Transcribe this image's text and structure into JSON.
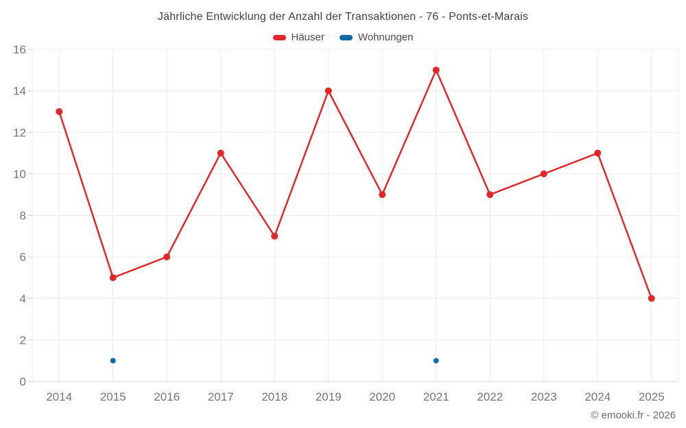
{
  "header": {
    "title": "Jährliche Entwicklung der Anzahl der Transaktionen - 76 - Ponts-et-Marais"
  },
  "footer": {
    "credit": "© emooki.fr - 2026"
  },
  "chart_data": {
    "type": "line",
    "title": "Jährliche Entwicklung der Anzahl der Transaktionen - 76 - Ponts-et-Marais",
    "categories": [
      "2014",
      "2015",
      "2016",
      "2017",
      "2018",
      "2019",
      "2020",
      "2021",
      "2022",
      "2023",
      "2024",
      "2025"
    ],
    "series": [
      {
        "name": "Häuser",
        "color": "#e0282b",
        "connect": true,
        "marker_radius": 5,
        "values": [
          13,
          5,
          6,
          11,
          7,
          14,
          9,
          15,
          9,
          10,
          11,
          4
        ]
      },
      {
        "name": "Wohnungen",
        "color": "#0e6ba8",
        "connect": false,
        "marker_radius": 4,
        "values": [
          null,
          1,
          null,
          null,
          null,
          null,
          null,
          1,
          null,
          null,
          null,
          null
        ]
      }
    ],
    "xlabel": "",
    "ylabel": "",
    "ylim": [
      0,
      16
    ],
    "ytick_step": 2,
    "grid": true,
    "legend_position": "top"
  },
  "style": {
    "background": "#ffffff",
    "grid_color": "#ececec",
    "axis_line_color": "#d9d9d9",
    "tick_color": "#cccccc",
    "tick_label_color": "#757575",
    "title_color": "#404040",
    "legend_text_color": "#4a4a4a",
    "footer_color": "#6b6b6b"
  }
}
